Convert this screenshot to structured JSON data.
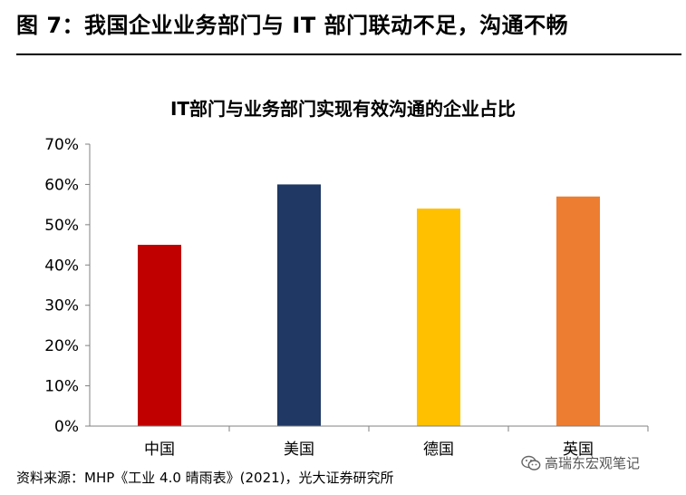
{
  "figure_title": "图 7：我国企业业务部门与 IT 部门联动不足，沟通不畅",
  "source": "资料来源：MHP《工业 4.0 晴雨表》(2021)，光大证券研究所",
  "watermark": "高瑞东宏观笔记",
  "chart_data": {
    "type": "bar",
    "title": "IT部门与业务部门实现有效沟通的企业占比",
    "categories": [
      "中国",
      "美国",
      "德国",
      "英国"
    ],
    "values": [
      45,
      60,
      54,
      57
    ],
    "unit": "%",
    "ylim": [
      0,
      70
    ],
    "yticks": [
      "0%",
      "10%",
      "20%",
      "30%",
      "40%",
      "50%",
      "60%",
      "70%"
    ],
    "colors": [
      "#c00000",
      "#1f3864",
      "#ffc000",
      "#ed7d31"
    ],
    "grid": false,
    "legend": "none"
  }
}
